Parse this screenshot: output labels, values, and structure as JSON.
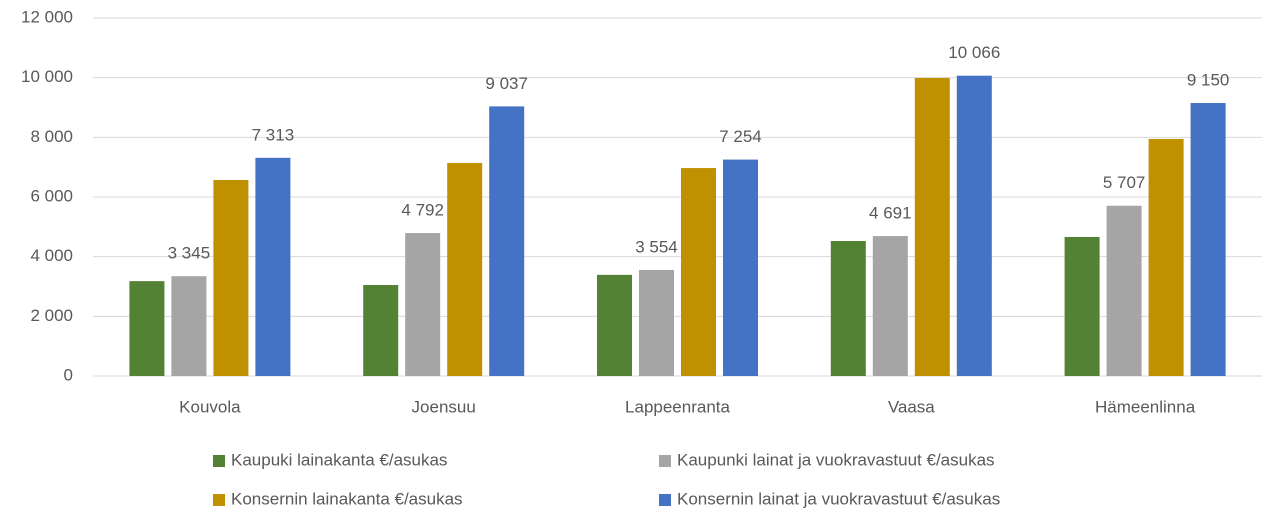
{
  "chart_data": {
    "type": "bar",
    "categories": [
      "Kouvola",
      "Joensuu",
      "Lappeenranta",
      "Vaasa",
      "Hämeenlinna"
    ],
    "series": [
      {
        "name": "Kaupuki lainakanta €/asukas",
        "color": "#548235",
        "values": [
          3180,
          3050,
          3390,
          4525,
          4660
        ]
      },
      {
        "name": "Kaupunki lainat ja vuokravastuut €/asukas",
        "color": "#a5a5a5",
        "values": [
          3345,
          4792,
          3554,
          4691,
          5707
        ],
        "value_labels": [
          "3 345",
          "4 792",
          "3 554",
          "4 691",
          "5 707"
        ]
      },
      {
        "name": "Konsernin lainakanta €/asukas",
        "color": "#bf9000",
        "values": [
          6570,
          7140,
          6970,
          9990,
          7945
        ]
      },
      {
        "name": "Konsernin lainat ja vuokravastuut €/asukas",
        "color": "#4472c4",
        "values": [
          7313,
          9037,
          7254,
          10066,
          9150
        ],
        "value_labels": [
          "7 313",
          "9 037",
          "7 254",
          "10 066",
          "9 150"
        ]
      }
    ],
    "ylim": [
      0,
      12000
    ],
    "yticks": [
      0,
      {
        "value": 2000,
        "label": "2 000"
      },
      {
        "value": 4000,
        "label": "4 000"
      },
      {
        "value": 6000,
        "label": "6 000"
      },
      {
        "value": 8000,
        "label": "8 000"
      },
      {
        "value": 10000,
        "label": "10 000"
      },
      {
        "value": 12000,
        "label": "12 000"
      }
    ],
    "grid": true
  }
}
